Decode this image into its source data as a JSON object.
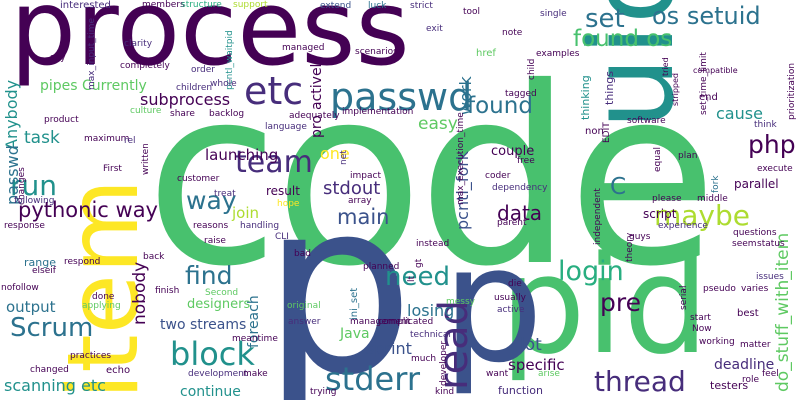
{
  "colors": {
    "dark_purple": "#440154",
    "purple": "#472d7b",
    "indigo": "#3b528b",
    "blue": "#2c728e",
    "teal": "#21918c",
    "green_teal": "#28ae80",
    "green": "#5ec962",
    "bright_green": "#48c16e",
    "yellow": "#fde725",
    "lime": "#addc30"
  },
  "words": {
    "code": "code",
    "process": "process",
    "uid": "uid",
    "item": "item",
    "p_large": "p",
    "pid": "pid",
    "p_mid": "p",
    "etc": "etc",
    "passwd": "passwd",
    "os_setuid": "os setuid",
    "set": "set",
    "found_os": "found os",
    "found": "found",
    "subprocess": "subprocess",
    "team": "team",
    "way": "way",
    "block": "block",
    "read": "read",
    "login": "login",
    "thread": "thread",
    "stderr": "stderr",
    "scrum": "Scrum",
    "run": "run",
    "pythonic_way": "pythonic way",
    "php": "php",
    "maybe": "maybe",
    "pre": "pre",
    "need": "need",
    "find": "find",
    "c": "C",
    "data": "data",
    "main": "main",
    "do_stuff_with_item": "do_stuff_with_item",
    "pipes_currently": "pipes Currently",
    "anybody": "Anybody",
    "task": "task",
    "passwd_small": "passwd",
    "launching": "launching",
    "stdout": "stdout",
    "join": "join",
    "one": "one",
    "easy": "easy",
    "work": "work",
    "cause": "cause",
    "pcntl_fork": "pcntl_fork",
    "nobody": "nobody",
    "output": "output",
    "two_streams": "two streams",
    "losing": "losing",
    "sprint": "sprint",
    "lot": "lot",
    "java": "Java",
    "specific": "specific",
    "continue": "continue",
    "scanning_etc": "scanning etc",
    "range": "range",
    "foreach": "foreach",
    "designers": "designers",
    "deadline": "deadline",
    "parallel": "parallel",
    "script": "script",
    "couple": "couple",
    "result": "result",
    "actively": "actively",
    "pro": "pro",
    "interested": "interested",
    "max_input_time": "max_input_time",
    "members": "members",
    "structure": "structure",
    "support": "support",
    "extend": "extend",
    "luck": "luck",
    "strict": "strict",
    "tool": "tool",
    "single": "single",
    "exit": "exit",
    "note": "note",
    "href": "href",
    "examples": "examples",
    "compatible": "compatible",
    "set_time_limit": "set_time_limit",
    "prioritization": "prioritization",
    "clarity": "clarity",
    "order": "order",
    "pcntl_waitpid": "pcntl_waitpid",
    "managed": "managed",
    "scenarios": "scenarios",
    "say": "say",
    "completely": "completely",
    "whole": "whole",
    "children": "children",
    "end": "end",
    "thinking": "thinking",
    "things": "things",
    "tagged": "tagged",
    "child": "child",
    "tried": "tried",
    "stripped": "stripped",
    "product": "product",
    "culture": "culture",
    "share": "share",
    "backlog": "backlog",
    "adequately": "adequately",
    "language": "language",
    "implementation": "implementation",
    "software": "software",
    "think": "think",
    "maximum": "maximum",
    "rel": "rel",
    "written": "written",
    "non": "non",
    "max_execution_time": "max_execution_time",
    "net": "net",
    "impact": "impact",
    "free": "free",
    "edit": "EDIT",
    "equal": "equal",
    "plan": "plan",
    "execute": "execute",
    "fork": "fork",
    "first": "First",
    "customer": "customer",
    "array": "array",
    "coder": "coder",
    "dependency": "dependency",
    "independent": "independent",
    "please": "please",
    "middle": "middle",
    "treat": "treat",
    "hope": "hope",
    "changes": "changes",
    "following": "following",
    "response": "response",
    "reasons": "reasons",
    "handling": "handling",
    "parent": "parent",
    "experience": "experience",
    "guys": "guys",
    "questions": "questions",
    "seem": "seem",
    "status": "status",
    "cli": "CLI",
    "instead": "instead",
    "theory": "theory",
    "elseif": "elseif",
    "respond": "respond",
    "back": "back",
    "bad": "bad",
    "planned": "planned",
    "gt": "gt",
    "it": "lt",
    "nofollow": "nofollow",
    "finish": "finish",
    "second": "Second",
    "raise": "raise",
    "ini_set": "ini_set",
    "pseudo": "pseudo",
    "varies": "varies",
    "issues": "issues",
    "done": "done",
    "applying": "applying",
    "die": "die",
    "serial": "serial",
    "messy": "messy",
    "complicated": "complicated",
    "usually": "usually",
    "active": "active",
    "best": "best",
    "start": "start",
    "now": "Now",
    "meantime": "meantime",
    "original": "original",
    "answer": "answer",
    "management": "management",
    "working": "working",
    "matter": "matter",
    "practices": "practices",
    "development": "development",
    "technical": "technical",
    "much": "much",
    "echo": "echo",
    "make": "make",
    "trying": "trying",
    "kind": "kind",
    "developer": "developer",
    "want": "want",
    "arise": "arise",
    "function": "function",
    "testers": "testers",
    "feel": "feel",
    "role": "role",
    "changed": "changed"
  }
}
